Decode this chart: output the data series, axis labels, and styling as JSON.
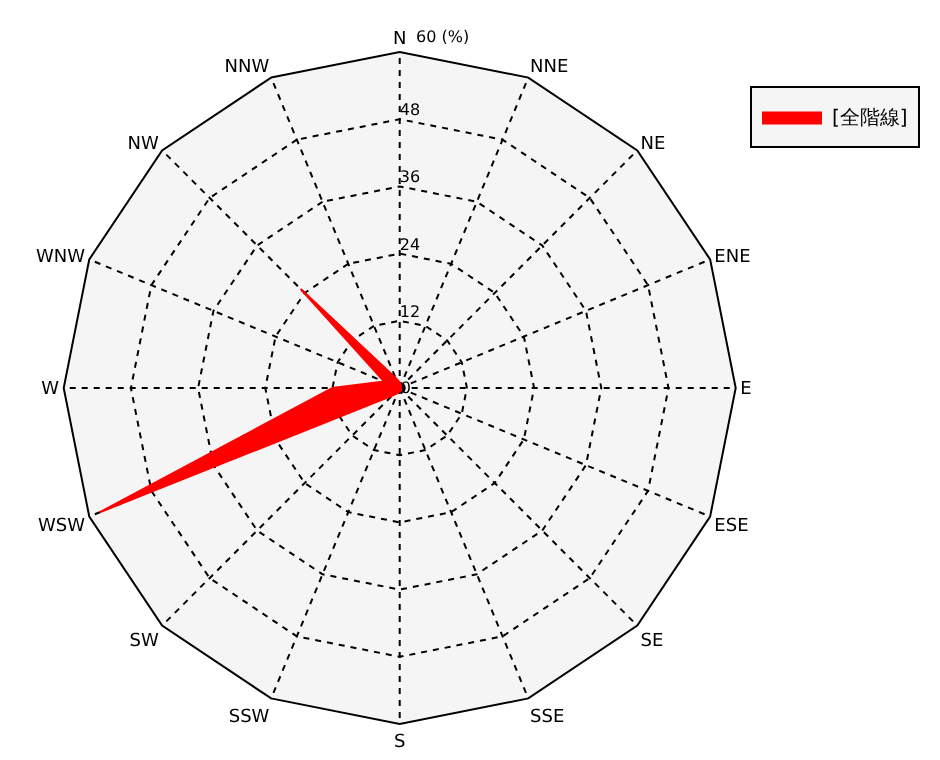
{
  "chart_data": {
    "type": "radar",
    "legend": "top right",
    "grid": true,
    "marker": "none",
    "categories": [
      "N",
      "NNE",
      "NE",
      "ENE",
      "E",
      "ESE",
      "SE",
      "SSE",
      "S",
      "SSW",
      "SW",
      "WSW",
      "W",
      "WNW",
      "NW",
      "NNW"
    ],
    "series": [
      {
        "name": "[全階線]",
        "color": "#ff0000",
        "values": [
          1,
          0.5,
          0.5,
          0.5,
          0.5,
          0.5,
          0.5,
          0.5,
          0.5,
          1,
          2,
          58,
          12,
          3,
          25,
          2
        ]
      }
    ],
    "ylim": [
      0,
      60
    ],
    "yticks": [
      0,
      12,
      24,
      36,
      48,
      {
        "value": 60,
        "label": "60 (%)"
      }
    ]
  }
}
